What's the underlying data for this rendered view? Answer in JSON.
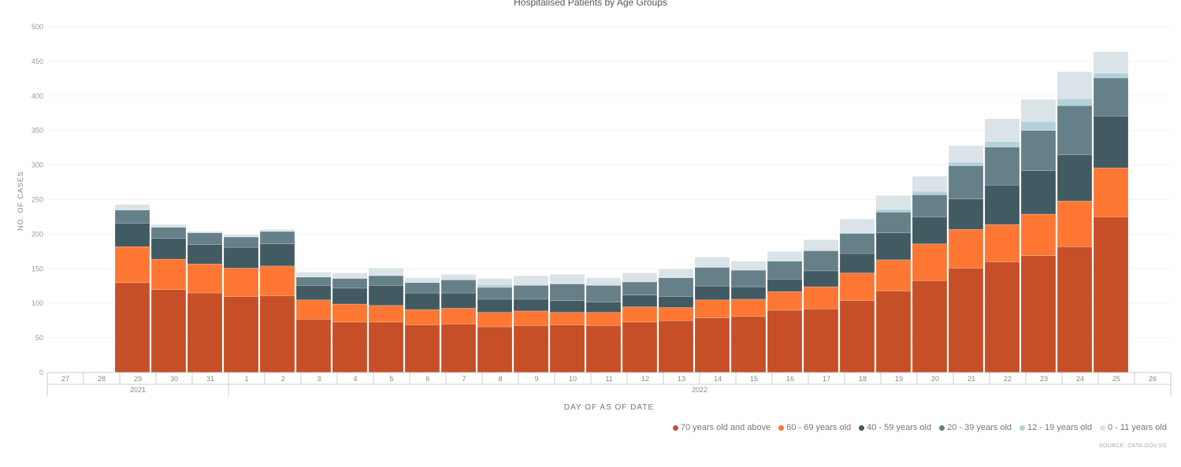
{
  "chart_data": {
    "type": "bar",
    "stacked": true,
    "title": "Hospitalised Patients by Age Groups",
    "xlabel": "DAY OF AS OF DATE",
    "ylabel": "NO. OF CASES",
    "ylim": [
      0,
      500
    ],
    "yticks": [
      0,
      50,
      100,
      150,
      200,
      250,
      300,
      350,
      400,
      450,
      500
    ],
    "grid": true,
    "legend_position": "bottom-right",
    "source": "SOURCE: DATA.GOV.SG",
    "categories": [
      "27",
      "28",
      "29",
      "30",
      "31",
      "1",
      "2",
      "3",
      "4",
      "5",
      "6",
      "7",
      "8",
      "9",
      "10",
      "11",
      "12",
      "13",
      "14",
      "15",
      "16",
      "17",
      "18",
      "19",
      "20",
      "21",
      "22",
      "23",
      "24",
      "25",
      "26"
    ],
    "year_groups": [
      {
        "label": "2021",
        "span": 5
      },
      {
        "label": "2022",
        "span": 26
      }
    ],
    "series": [
      {
        "name": "70 years old and above",
        "color": "#c64f27",
        "values": [
          null,
          null,
          130,
          120,
          115,
          110,
          111,
          77,
          73,
          73,
          69,
          70,
          66,
          68,
          69,
          68,
          73,
          75,
          79,
          81,
          90,
          92,
          104,
          118,
          133,
          151,
          160,
          169,
          182,
          225,
          null
        ]
      },
      {
        "name": "60 - 69 years old",
        "color": "#fe7733",
        "values": [
          null,
          null,
          52,
          44,
          42,
          41,
          43,
          28,
          26,
          24,
          22,
          23,
          21,
          21,
          18,
          19,
          22,
          19,
          26,
          25,
          27,
          32,
          40,
          45,
          53,
          56,
          54,
          60,
          66,
          71,
          null
        ]
      },
      {
        "name": "40 - 59 years old",
        "color": "#425a62",
        "values": [
          null,
          null,
          34,
          30,
          28,
          30,
          32,
          21,
          23,
          29,
          24,
          22,
          19,
          17,
          17,
          15,
          17,
          16,
          20,
          18,
          18,
          23,
          28,
          39,
          39,
          44,
          57,
          63,
          67,
          75,
          null
        ]
      },
      {
        "name": "20 - 39 years old",
        "color": "#658089",
        "values": [
          null,
          null,
          19,
          16,
          17,
          15,
          18,
          12,
          14,
          14,
          15,
          19,
          17,
          20,
          24,
          24,
          19,
          27,
          27,
          24,
          26,
          29,
          29,
          30,
          32,
          48,
          55,
          58,
          71,
          55,
          null
        ]
      },
      {
        "name": "12 - 19 years old",
        "color": "#b3d1d8",
        "values": [
          null,
          null,
          0,
          0,
          0,
          0,
          0,
          0,
          0,
          0,
          0,
          0,
          4,
          1,
          1,
          0,
          0,
          0,
          0,
          0,
          0,
          0,
          1,
          4,
          5,
          5,
          8,
          13,
          10,
          7,
          null
        ]
      },
      {
        "name": "0 - 11 years old",
        "color": "#dae3e8",
        "values": [
          null,
          null,
          8,
          4,
          2,
          3,
          3,
          7,
          8,
          11,
          7,
          8,
          9,
          13,
          13,
          11,
          13,
          13,
          15,
          13,
          14,
          16,
          20,
          20,
          22,
          24,
          33,
          32,
          39,
          31,
          null
        ]
      }
    ]
  }
}
